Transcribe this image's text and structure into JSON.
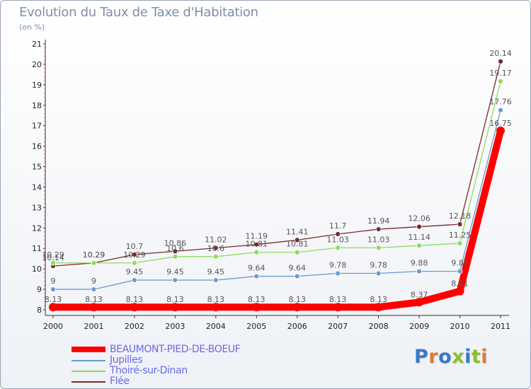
{
  "header": {
    "title": "Evolution du Taux de Taxe d'Habitation",
    "unit": "(en %)"
  },
  "brand": {
    "logo_text": "Proxiti"
  },
  "chart_data": {
    "type": "line",
    "title": "Evolution du Taux de Taxe d'Habitation",
    "ylabel": "(en %)",
    "xlabel": "",
    "x": [
      "2000",
      "2001",
      "2002",
      "2003",
      "2004",
      "2005",
      "2006",
      "2007",
      "2008",
      "2009",
      "2010",
      "2011"
    ],
    "ylim": [
      8,
      21
    ],
    "yticks": [
      8,
      9,
      10,
      11,
      12,
      13,
      14,
      15,
      16,
      17,
      18,
      19,
      20,
      21
    ],
    "grid": false,
    "legend_position": "bottom-left",
    "series": [
      {
        "name": "BEAUMONT-PIED-DE-BOEUF",
        "color": "#ff0000",
        "labels": [
          "8.13",
          "8.13",
          "8.13",
          "8.13",
          "8.13",
          "8.13",
          "8.13",
          "8.13",
          "8.13",
          "8.37",
          "8.91",
          "16.75"
        ],
        "values": [
          8.13,
          8.13,
          8.13,
          8.13,
          8.13,
          8.13,
          8.13,
          8.13,
          8.13,
          8.37,
          8.91,
          16.75
        ]
      },
      {
        "name": "Jupilles",
        "color": "#6b9bd1",
        "labels": [
          "9",
          "9",
          "9.45",
          "9.45",
          "9.45",
          "9.64",
          "9.64",
          "9.78",
          "9.78",
          "9.88",
          "9.88",
          "17.76"
        ],
        "values": [
          9,
          9,
          9.45,
          9.45,
          9.45,
          9.64,
          9.64,
          9.78,
          9.78,
          9.88,
          9.88,
          17.76
        ]
      },
      {
        "name": "Thoiré-sur-Dinan",
        "color": "#8edb5a",
        "labels": [
          "10.29",
          "10.29",
          "10.29",
          "10.6",
          "10.6",
          "10.81",
          "10.81",
          "11.03",
          "11.03",
          "11.14",
          "11.25",
          "19.17"
        ],
        "values": [
          10.29,
          10.29,
          10.29,
          10.6,
          10.6,
          10.81,
          10.81,
          11.03,
          11.03,
          11.14,
          11.25,
          19.17
        ]
      },
      {
        "name": "Flée",
        "color": "#7a2a2a",
        "labels": [
          "10.14",
          "10.29",
          "10.7",
          "10.86",
          "11.02",
          "11.19",
          "11.41",
          "11.7",
          "11.94",
          "12.06",
          "12.18",
          "20.14"
        ],
        "values": [
          10.14,
          10.29,
          10.7,
          10.86,
          11.02,
          11.19,
          11.41,
          11.7,
          11.94,
          12.06,
          12.18,
          20.14
        ]
      }
    ]
  }
}
